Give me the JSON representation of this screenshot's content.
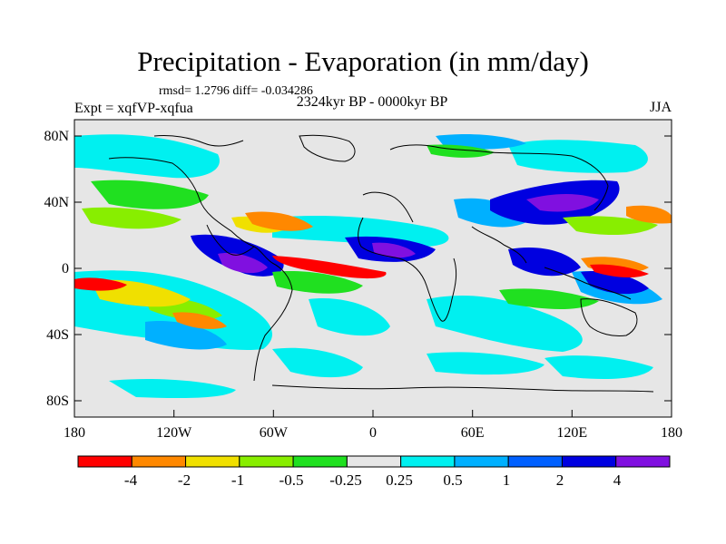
{
  "header": {
    "title": "Precipitation - Evaporation (in mm/day)",
    "stats": "rmsd= 1.2796 diff= -0.034286",
    "experiment": "Expt = xqfVP-xqfua",
    "period": "2324kyr BP - 0000kyr BP",
    "season": "JJA"
  },
  "axes": {
    "lat_ticks": [
      "80N",
      "40N",
      "0",
      "40S",
      "80S"
    ],
    "lon_ticks": [
      "180",
      "120W",
      "60W",
      "0",
      "60E",
      "120E",
      "180"
    ]
  },
  "colorbar": {
    "labels": [
      "-4",
      "-2",
      "-1",
      "-0.5",
      "-0.25",
      "0.25",
      "0.5",
      "1",
      "2",
      "4"
    ],
    "colors": [
      "#ff0000",
      "#ff8800",
      "#f0e000",
      "#88ee00",
      "#20e020",
      "#e6e6e6",
      "#00f0f0",
      "#00b0ff",
      "#0060ff",
      "#0000e0",
      "#8010e0"
    ]
  },
  "colors": {
    "ocean_neutral": "#e6e6e6",
    "coastline": "#000000"
  }
}
